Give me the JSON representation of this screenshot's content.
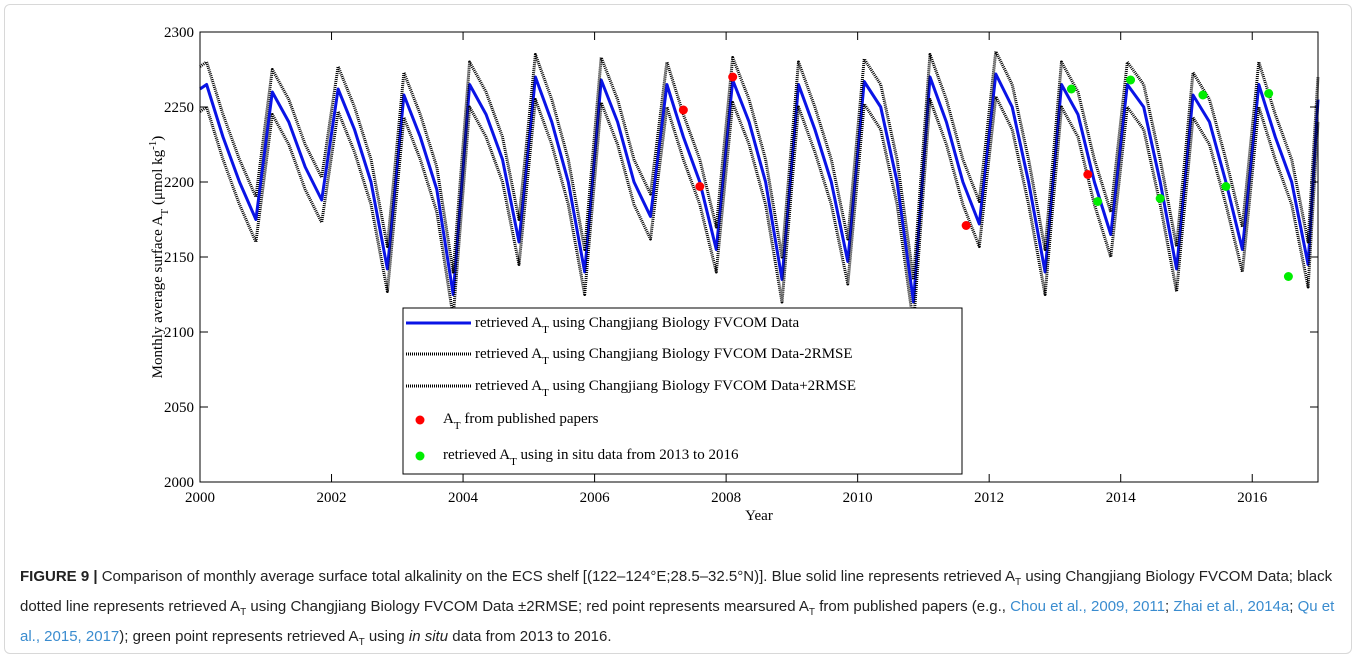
{
  "chart_data": {
    "type": "line",
    "xlabel": "Year",
    "ylabel": [
      "Monthly average surface A",
      "T",
      " (μmol kg",
      "-1",
      ")"
    ],
    "xlim": [
      2000,
      2017
    ],
    "xticks": [
      2000,
      2002,
      2004,
      2006,
      2008,
      2010,
      2012,
      2014,
      2016
    ],
    "ylim": [
      2000,
      2300
    ],
    "yticks": [
      2000,
      2050,
      2100,
      2150,
      2200,
      2250,
      2300
    ],
    "x": [
      2000,
      2000.1,
      2000.35,
      2000.6,
      2000.85,
      2001.1,
      2001.35,
      2001.6,
      2001.85,
      2002.1,
      2002.35,
      2002.6,
      2002.85,
      2003.1,
      2003.35,
      2003.6,
      2003.85,
      2004.1,
      2004.35,
      2004.6,
      2004.85,
      2005.1,
      2005.35,
      2005.6,
      2005.85,
      2006.1,
      2006.35,
      2006.6,
      2006.85,
      2007.1,
      2007.35,
      2007.6,
      2007.85,
      2008.1,
      2008.35,
      2008.6,
      2008.85,
      2009.1,
      2009.35,
      2009.6,
      2009.85,
      2010.1,
      2010.35,
      2010.6,
      2010.85,
      2011.1,
      2011.35,
      2011.6,
      2011.85,
      2012.1,
      2012.35,
      2012.6,
      2012.85,
      2013.1,
      2013.35,
      2013.6,
      2013.85,
      2014.1,
      2014.35,
      2014.6,
      2014.85,
      2015.1,
      2015.35,
      2015.6,
      2015.85,
      2016.1,
      2016.35,
      2016.6,
      2016.85,
      2017
    ],
    "series": [
      {
        "name": [
          "retrieved A",
          "T",
          " using Changjiang Biology FVCOM Data"
        ],
        "type": "line",
        "linestyle": "solid",
        "color": "#0a14e6",
        "values": [
          2262,
          2265,
          2230,
          2200,
          2175,
          2260,
          2240,
          2210,
          2188,
          2262,
          2235,
          2200,
          2142,
          2258,
          2230,
          2195,
          2125,
          2265,
          2245,
          2215,
          2160,
          2270,
          2240,
          2200,
          2140,
          2268,
          2240,
          2200,
          2177,
          2265,
          2230,
          2200,
          2155,
          2268,
          2240,
          2200,
          2135,
          2265,
          2235,
          2200,
          2147,
          2267,
          2250,
          2200,
          2120,
          2270,
          2240,
          2200,
          2172,
          2272,
          2250,
          2200,
          2140,
          2265,
          2245,
          2200,
          2165,
          2265,
          2250,
          2200,
          2142,
          2258,
          2240,
          2200,
          2155,
          2265,
          2230,
          2200,
          2145,
          2255
        ]
      },
      {
        "name": [
          "retrieved A",
          "T",
          " using Changjiang Biology FVCOM Data-2RMSE"
        ],
        "type": "line",
        "linestyle": "dotted",
        "color": "#000000",
        "values": [
          2247,
          2250,
          2215,
          2185,
          2160,
          2245,
          2225,
          2195,
          2173,
          2247,
          2220,
          2185,
          2127,
          2243,
          2215,
          2180,
          2110,
          2250,
          2230,
          2200,
          2145,
          2255,
          2225,
          2185,
          2125,
          2253,
          2225,
          2185,
          2162,
          2250,
          2215,
          2185,
          2140,
          2253,
          2225,
          2185,
          2120,
          2250,
          2220,
          2185,
          2132,
          2252,
          2235,
          2185,
          2105,
          2255,
          2225,
          2185,
          2157,
          2257,
          2235,
          2185,
          2125,
          2250,
          2230,
          2185,
          2150,
          2250,
          2235,
          2185,
          2127,
          2243,
          2225,
          2185,
          2140,
          2250,
          2215,
          2185,
          2130,
          2240
        ]
      },
      {
        "name": [
          "retrieved A",
          "T",
          " using Changjiang Biology FVCOM Data+2RMSE"
        ],
        "type": "line",
        "linestyle": "dotted",
        "color": "#000000",
        "values": [
          2277,
          2280,
          2245,
          2215,
          2190,
          2275,
          2255,
          2225,
          2203,
          2277,
          2250,
          2215,
          2157,
          2273,
          2245,
          2210,
          2140,
          2280,
          2260,
          2230,
          2175,
          2285,
          2255,
          2215,
          2155,
          2283,
          2255,
          2215,
          2192,
          2280,
          2245,
          2215,
          2170,
          2283,
          2255,
          2215,
          2150,
          2280,
          2250,
          2215,
          2162,
          2282,
          2265,
          2215,
          2135,
          2285,
          2255,
          2215,
          2187,
          2287,
          2265,
          2215,
          2155,
          2280,
          2260,
          2215,
          2180,
          2280,
          2265,
          2215,
          2157,
          2273,
          2255,
          2215,
          2170,
          2280,
          2245,
          2215,
          2160,
          2270
        ]
      },
      {
        "name": [
          "A",
          "T",
          " from published papers"
        ],
        "type": "scatter",
        "color": "#ff0000",
        "x": [
          2007.35,
          2007.6,
          2008.1,
          2011.65,
          2013.5
        ],
        "values": [
          2248,
          2197,
          2270,
          2171,
          2205
        ]
      },
      {
        "name": [
          "retrieved A",
          "T",
          " using in situ data from 2013 to 2016"
        ],
        "type": "scatter",
        "color": "#00ee00",
        "x": [
          2013.25,
          2013.65,
          2014.15,
          2014.6,
          2015.25,
          2015.6,
          2016.25,
          2016.55
        ],
        "values": [
          2262,
          2187,
          2268,
          2189,
          2258,
          2197,
          2259,
          2137
        ]
      }
    ]
  },
  "caption": [
    "FIGURE 9 |",
    " Comparison of monthly average surface total alkalinity on the ECS shelf [(122–124°E;28.5–32.5°N)]. Blue solid line represents retrieved A",
    "T",
    " using Changjiang Biology FVCOM Data; black dotted line represents retrieved A",
    "T",
    " using Changjiang Biology FVCOM Data ±2RMSE; red point represents mearsured A",
    "T",
    " from published papers (e.g., ",
    "Chou et al., 2009, 2011",
    "; ",
    "Zhai et al., 2014a",
    "; ",
    "Qu et al., 2015, 2017",
    "); green point represents retrieved A",
    "T",
    " using ",
    "in situ",
    " data from 2013 to 2016."
  ]
}
